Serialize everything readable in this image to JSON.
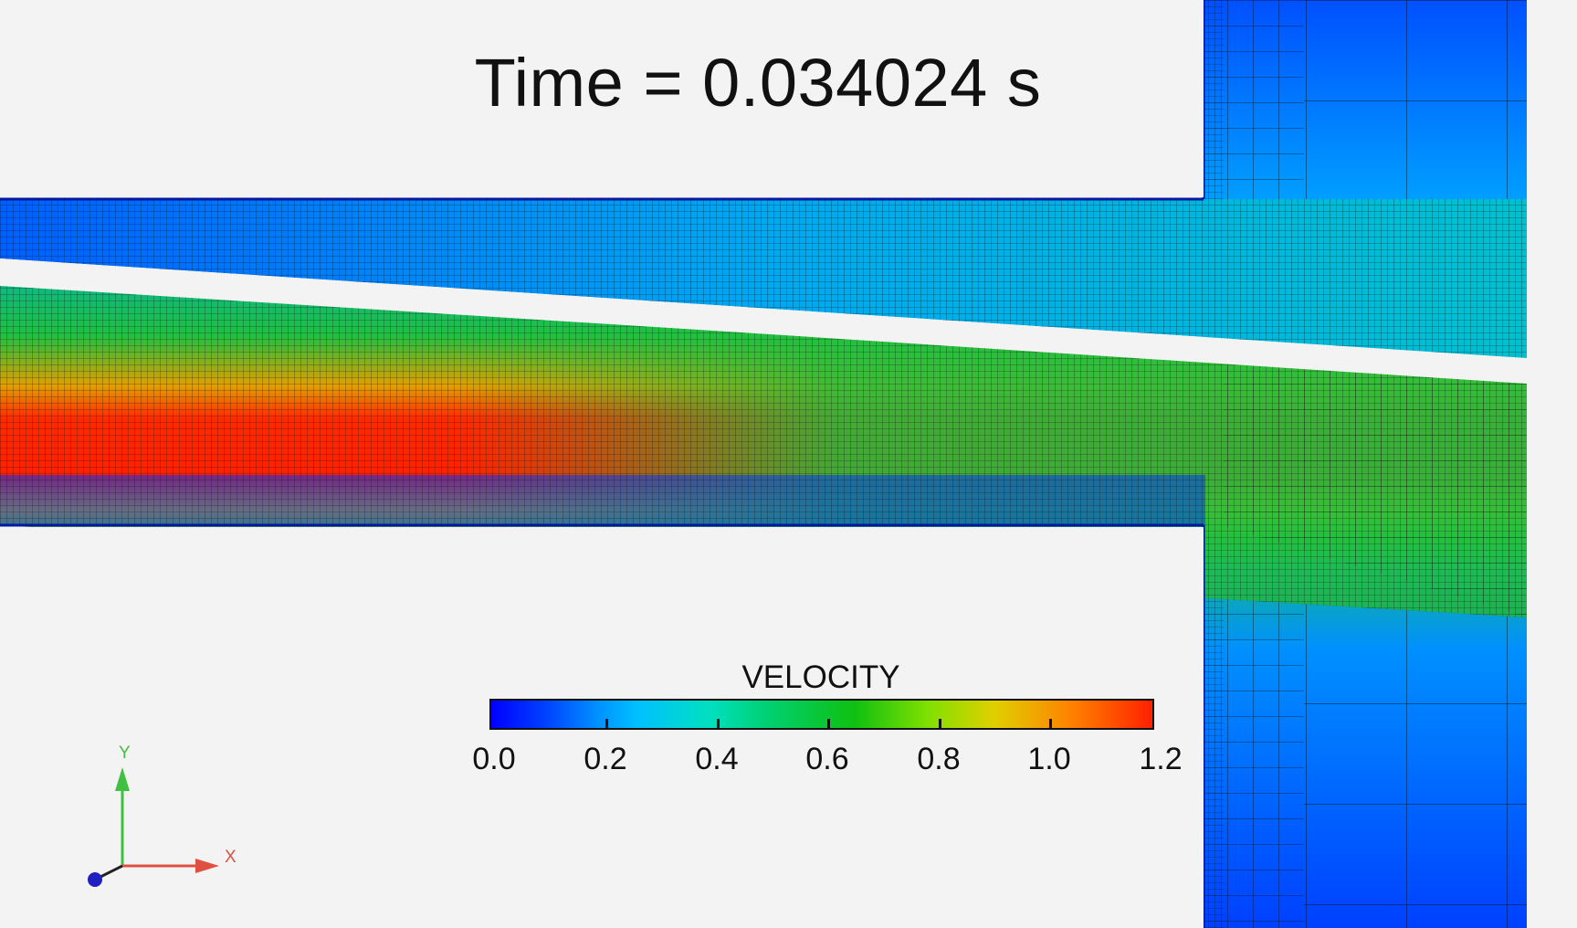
{
  "header": {
    "time_label": "Time = 0.034024 s"
  },
  "colorbar": {
    "title": "VELOCITY",
    "ticks": [
      "0.0",
      "0.2",
      "0.4",
      "0.6",
      "0.8",
      "1.0",
      "1.2"
    ],
    "range": [
      0.0,
      1.2
    ],
    "colormap": "rainbow (blue-cyan-green-yellow-red)"
  },
  "axes_triad": {
    "x_label": "X",
    "y_label": "Y",
    "x_color": "#e05040",
    "y_color": "#40c040",
    "z_color": "#2020c0"
  },
  "colors": {
    "background": "#f3f3f3",
    "mesh_line": "#1a1a1a",
    "low_velocity": "#0050ff",
    "high_velocity": "#ff2000"
  }
}
